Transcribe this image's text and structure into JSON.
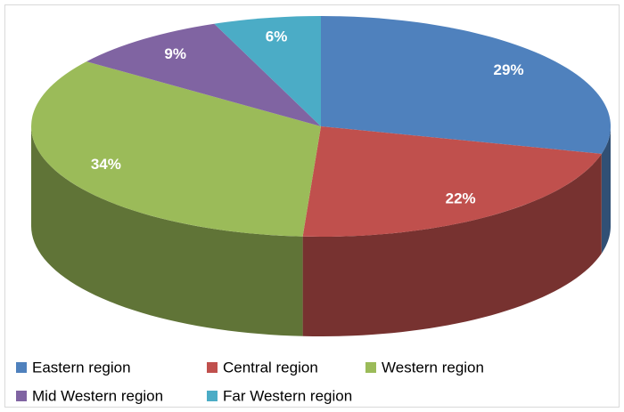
{
  "chart_data": {
    "type": "pie",
    "three_d": true,
    "categories": [
      "Eastern region",
      "Central region",
      "Western region",
      "Mid Western region",
      "Far Western region"
    ],
    "values": [
      29,
      22,
      34,
      9,
      6
    ],
    "value_labels": [
      "29%",
      "22%",
      "34%",
      "9%",
      "6%"
    ],
    "colors": [
      "#4f81bd",
      "#c0504d",
      "#9bbb59",
      "#8064a2",
      "#4bacc6"
    ],
    "legend": "bottom"
  }
}
